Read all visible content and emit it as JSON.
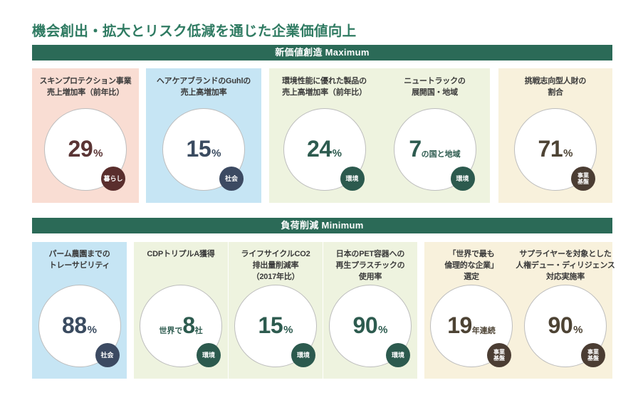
{
  "page_title": "機会創出・拡大とリスク低減を通じた企業価値向上",
  "sections": [
    {
      "heading": "新価値創造 Maximum",
      "cards": [
        {
          "background": "#f9ddd3",
          "value_color": "#5a3434",
          "badge_color": "#5a2e2d",
          "items": [
            {
              "title_lines": [
                "スキンプロテクション事業",
                "売上増加率（前年比）"
              ],
              "value": {
                "prefix": "",
                "number": "29",
                "suffix": "%"
              },
              "badge_lines": [
                "暮らし"
              ]
            }
          ]
        },
        {
          "background": "#c6e5f4",
          "value_color": "#3a4b60",
          "badge_color": "#3c4a62",
          "items": [
            {
              "title_lines": [
                "ヘアケアブランドのGuhlの",
                "売上高増加率"
              ],
              "value": {
                "prefix": "",
                "number": "15",
                "suffix": "%"
              },
              "badge_lines": [
                "社会"
              ]
            }
          ]
        },
        {
          "background": "#eef3df",
          "value_color": "#2d5b4f",
          "badge_color": "#2c5a4e",
          "items": [
            {
              "title_lines": [
                "環境性能に優れた製品の",
                "売上高増加率（前年比）"
              ],
              "value": {
                "prefix": "",
                "number": "24",
                "suffix": "%"
              },
              "badge_lines": [
                "環境"
              ]
            },
            {
              "title_lines": [
                "ニュートラックの",
                "展開国・地域"
              ],
              "value": {
                "prefix": "",
                "number": "7",
                "suffix": "の国と地域"
              },
              "badge_lines": [
                "環境"
              ]
            }
          ]
        },
        {
          "background": "#f8f1dc",
          "value_color": "#4d4334",
          "badge_color": "#4b3d33",
          "items": [
            {
              "title_lines": [
                "挑戦志向型人財の",
                "割合"
              ],
              "value": {
                "prefix": "",
                "number": "71",
                "suffix": "%"
              },
              "badge_lines": [
                "事業",
                "基盤"
              ]
            }
          ]
        }
      ]
    },
    {
      "heading": "負荷削減 Minimum",
      "cards": [
        {
          "background": "#c6e5f4",
          "value_color": "#3a4b60",
          "badge_color": "#3c4a62",
          "items": [
            {
              "title_lines": [
                "パーム農園までの",
                "トレーサビリティ"
              ],
              "value": {
                "prefix": "",
                "number": "88",
                "suffix": "%"
              },
              "badge_lines": [
                "社会"
              ]
            }
          ]
        },
        {
          "background": "#eef3df",
          "value_color": "#2d5b4f",
          "badge_color": "#2c5a4e",
          "items": [
            {
              "title_lines": [
                "CDPトリプルA獲得"
              ],
              "value": {
                "prefix": "世界で",
                "number": "8",
                "suffix": "社"
              },
              "badge_lines": [
                "環境"
              ]
            },
            {
              "title_lines": [
                "ライフサイクルCO2",
                "排出量削減率",
                "（2017年比）"
              ],
              "value": {
                "prefix": "",
                "number": "15",
                "suffix": "%"
              },
              "badge_lines": [
                "環境"
              ]
            },
            {
              "title_lines": [
                "日本のPET容器への",
                "再生プラスチックの",
                "使用率"
              ],
              "value": {
                "prefix": "",
                "number": "90",
                "suffix": "%"
              },
              "badge_lines": [
                "環境"
              ]
            }
          ]
        },
        {
          "background": "#f8f1dc",
          "value_color": "#4d4334",
          "badge_color": "#4b3d33",
          "items": [
            {
              "title_lines": [
                "「世界で最も",
                "倫理的な企業」",
                "選定"
              ],
              "value": {
                "prefix": "",
                "number": "19",
                "suffix": "年連続"
              },
              "badge_lines": [
                "事業",
                "基盤"
              ]
            },
            {
              "title_lines": [
                "サプライヤーを対象とした",
                "人権デュー・ディリジェンス",
                "対応実施率"
              ],
              "value": {
                "prefix": "",
                "number": "90",
                "suffix": "%"
              },
              "badge_lines": [
                "事業",
                "基盤"
              ]
            }
          ]
        }
      ]
    }
  ]
}
